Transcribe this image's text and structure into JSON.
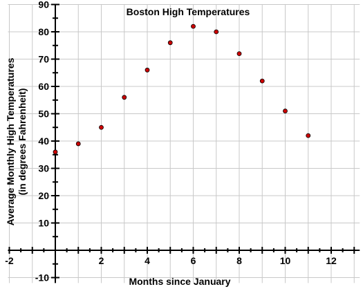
{
  "chart_data": {
    "type": "scatter",
    "title": "Boston High Temperatures",
    "xlabel": "Months since January",
    "ylabel_lines": [
      "Average Monthly High Temperatures",
      "(in degrees Fahrenheit)"
    ],
    "xlim": [
      -2,
      13
    ],
    "ylim": [
      -12,
      90
    ],
    "x_ticks": [
      -2,
      2,
      4,
      6,
      8,
      10,
      12
    ],
    "y_ticks": [
      -10,
      10,
      20,
      30,
      40,
      50,
      60,
      70,
      80,
      90
    ],
    "grid": true,
    "marker_color": "#cc0000",
    "points": [
      {
        "x": 0,
        "y": 36
      },
      {
        "x": 1,
        "y": 39
      },
      {
        "x": 2,
        "y": 45
      },
      {
        "x": 3,
        "y": 56
      },
      {
        "x": 4,
        "y": 66
      },
      {
        "x": 5,
        "y": 76
      },
      {
        "x": 6,
        "y": 82
      },
      {
        "x": 7,
        "y": 80
      },
      {
        "x": 8,
        "y": 72
      },
      {
        "x": 9,
        "y": 62
      },
      {
        "x": 10,
        "y": 51
      },
      {
        "x": 11,
        "y": 42
      }
    ]
  }
}
